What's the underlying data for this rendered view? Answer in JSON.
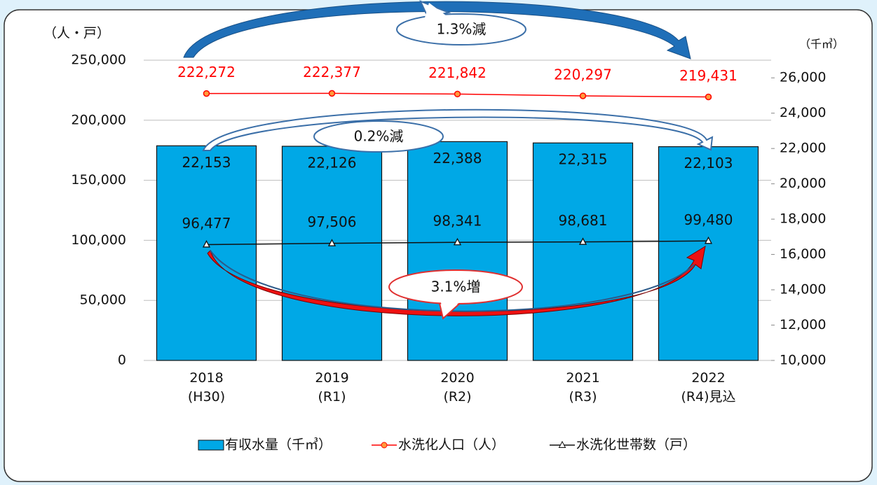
{
  "chart_data": {
    "type": "bar",
    "y_label": "（人・戸）",
    "y2_label": "（千㎥）",
    "categories": [
      [
        "2018",
        "(H30)"
      ],
      [
        "2019",
        "(R1)"
      ],
      [
        "2020",
        "(R2)"
      ],
      [
        "2021",
        "(R3)"
      ],
      [
        "2022",
        "(R4)見込"
      ]
    ],
    "ylim": [
      0,
      250000
    ],
    "yticks": [
      0,
      {
        "value": 50000,
        "label": "50,000"
      },
      {
        "value": 100000,
        "label": "100,000"
      },
      {
        "value": 150000,
        "label": "150,000"
      },
      {
        "value": 200000,
        "label": "200,000"
      },
      {
        "value": 250000,
        "label": "250,000"
      }
    ],
    "y2lim": [
      10000,
      27000
    ],
    "y2ticks": [
      {
        "value": 10000,
        "label": "10,000"
      },
      {
        "value": 12000,
        "label": "12,000"
      },
      {
        "value": 14000,
        "label": "14,000"
      },
      {
        "value": 16000,
        "label": "16,000"
      },
      {
        "value": 18000,
        "label": "18,000"
      },
      {
        "value": 20000,
        "label": "20,000"
      },
      {
        "value": 22000,
        "label": "22,000"
      },
      {
        "value": 24000,
        "label": "24,000"
      },
      {
        "value": 26000,
        "label": "26,000"
      }
    ],
    "grid": true,
    "series": [
      {
        "name": "有収水量（千㎥）",
        "type": "bar",
        "axis": "y2",
        "color": "#00a8e6",
        "values": [
          22153,
          22126,
          22388,
          22315,
          22103
        ],
        "value_labels": [
          "22,153",
          "22,126",
          "22,388",
          "22,315",
          "22,103"
        ]
      },
      {
        "name": "水洗化人口（人）",
        "type": "line",
        "marker": "circle",
        "color": "#ff0000",
        "values": [
          222272,
          222377,
          221842,
          220297,
          219431
        ],
        "value_labels": [
          "222,272",
          "222,377",
          "221,842",
          "220,297",
          "219,431"
        ]
      },
      {
        "name": "水洗化世帯数（戸）",
        "type": "line",
        "marker": "triangle",
        "color": "#111111",
        "values": [
          96477,
          97506,
          98341,
          98681,
          99480
        ],
        "value_labels": [
          "96,477",
          "97,506",
          "98,341",
          "98,681",
          "99,480"
        ]
      }
    ],
    "annotations": [
      "1.3%減",
      "0.2%減",
      "3.1%増"
    ]
  }
}
